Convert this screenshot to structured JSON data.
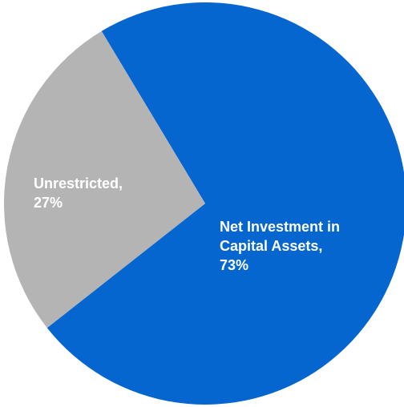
{
  "chart_data": {
    "type": "pie",
    "title": "",
    "slices": [
      {
        "label": "Net Investment in Capital Assets",
        "value": 73,
        "display": "73%",
        "color": "#0666CF",
        "label_lines": [
          "Net Investment in",
          "Capital Assets,",
          "73%"
        ]
      },
      {
        "label": "Unrestricted",
        "value": 27,
        "display": "27%",
        "color": "#B4B4B4",
        "label_lines": [
          "Unrestricted,",
          "27%"
        ]
      }
    ],
    "legend": "none"
  }
}
